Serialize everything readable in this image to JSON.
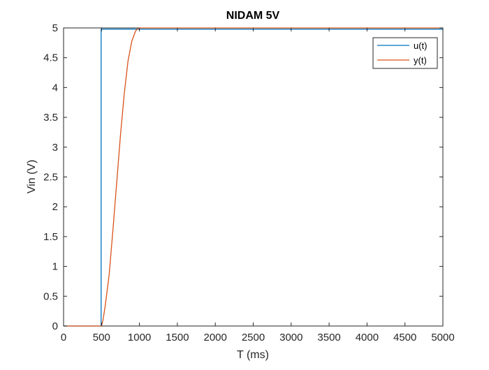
{
  "chart_data": {
    "type": "line",
    "title": "NIDAM 5V",
    "xlabel": "T (ms)",
    "ylabel": "Vin (V)",
    "xlim": [
      0,
      5000
    ],
    "ylim": [
      0,
      5
    ],
    "x_ticks": [
      0,
      500,
      1000,
      1500,
      2000,
      2500,
      3000,
      3500,
      4000,
      4500,
      5000
    ],
    "y_ticks": [
      0,
      0.5,
      1,
      1.5,
      2,
      2.5,
      3,
      3.5,
      4,
      4.5,
      5
    ],
    "grid": false,
    "legend_position": "top-right",
    "series": [
      {
        "name": "u(t)",
        "color": "#0072BD",
        "x": [
          0,
          495,
          495,
          5000
        ],
        "y": [
          0,
          0,
          4.98,
          4.98
        ]
      },
      {
        "name": "y(t)",
        "color": "#D95319",
        "x": [
          0,
          500,
          520,
          550,
          600,
          650,
          700,
          750,
          800,
          850,
          900,
          950,
          980,
          1000,
          1200,
          2000,
          3000,
          4000,
          5000
        ],
        "y": [
          0,
          0,
          0.1,
          0.35,
          0.85,
          1.6,
          2.4,
          3.2,
          3.9,
          4.45,
          4.78,
          4.95,
          4.99,
          5.0,
          5.0,
          5.0,
          5.0,
          5.0,
          5.0
        ]
      }
    ]
  }
}
